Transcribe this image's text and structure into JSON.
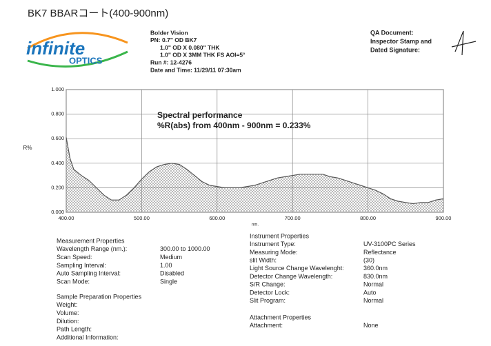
{
  "page_title": "BK7 BBARコート(400-900nm)",
  "logo": {
    "name": "infinite",
    "sub": "OPTICS"
  },
  "header": {
    "lines": [
      "Bolder Vision",
      "PN: 0.7\" OD BK7",
      "1.0\" OD X 0.080\" THK",
      "1.0\" OD X 3MM THK FS   AOI=5°",
      "Run #: 12-4276",
      "Date and Time: 11/29/11 07:30am"
    ]
  },
  "qa": {
    "lines": [
      "QA Document:",
      "Inspector Stamp and",
      "Dated Signature:"
    ]
  },
  "chart_data": {
    "type": "area",
    "annotations": [
      "Spectral performance",
      "%R(abs) from 400nm - 900nm = 0.233%"
    ],
    "x_label": "nm.",
    "y_label": "R%",
    "x": [
      400,
      405,
      410,
      420,
      430,
      440,
      450,
      460,
      470,
      480,
      490,
      500,
      510,
      520,
      530,
      540,
      550,
      560,
      570,
      580,
      590,
      600,
      610,
      620,
      630,
      640,
      650,
      660,
      670,
      680,
      690,
      700,
      710,
      720,
      730,
      740,
      750,
      760,
      770,
      780,
      790,
      800,
      810,
      820,
      830,
      840,
      850,
      860,
      870,
      880,
      890,
      900
    ],
    "values": [
      0.61,
      0.44,
      0.35,
      0.3,
      0.26,
      0.2,
      0.14,
      0.1,
      0.1,
      0.14,
      0.2,
      0.27,
      0.33,
      0.37,
      0.39,
      0.4,
      0.39,
      0.35,
      0.3,
      0.25,
      0.22,
      0.21,
      0.2,
      0.2,
      0.2,
      0.21,
      0.22,
      0.24,
      0.26,
      0.28,
      0.29,
      0.3,
      0.31,
      0.31,
      0.31,
      0.31,
      0.29,
      0.28,
      0.26,
      0.24,
      0.22,
      0.2,
      0.18,
      0.15,
      0.11,
      0.09,
      0.08,
      0.07,
      0.08,
      0.08,
      0.1,
      0.11
    ],
    "color": "#555555",
    "xlim": [
      400,
      900
    ],
    "xticks": [
      {
        "value": 400,
        "label": "400.00"
      },
      {
        "value": 500,
        "label": "500.00"
      },
      {
        "value": 600,
        "label": "600.00"
      },
      {
        "value": 700,
        "label": "700.00"
      },
      {
        "value": 800,
        "label": "800.00"
      },
      {
        "value": 900,
        "label": "900.00"
      }
    ],
    "ylim": [
      0,
      1
    ],
    "yticks": [
      {
        "value": 0,
        "label": "0.000"
      },
      {
        "value": 0.2,
        "label": "0.200"
      },
      {
        "value": 0.4,
        "label": "0.400"
      },
      {
        "value": 0.6,
        "label": "0.600"
      },
      {
        "value": 0.8,
        "label": "0.800"
      },
      {
        "value": 1,
        "label": "1.000"
      }
    ],
    "grid": true
  },
  "measurement": {
    "title": "Measurement Properties",
    "rows": [
      [
        "Wavelength Range (nm.):",
        "300.00 to 1000.00"
      ],
      [
        "Scan Speed:",
        "Medium"
      ],
      [
        "Sampling Interval:",
        "1.00"
      ],
      [
        "Auto Sampling Interval:",
        "Disabled"
      ],
      [
        "Scan Mode:",
        "Single"
      ]
    ]
  },
  "sample": {
    "title": "Sample Preparation Properties",
    "rows": [
      "Weight:",
      "Volume:",
      "Dilution:",
      "Path Length:",
      "Additional Information:"
    ]
  },
  "instrument": {
    "title": "Instrument Properties",
    "rows": [
      [
        "Instrument Type:",
        "UV-3100PC Series"
      ],
      [
        "Measuring Mode:",
        "Reflectance"
      ],
      [
        "slit Width:",
        "(30)"
      ],
      [
        "Light Source Change Wavelenght:",
        "360.0nm"
      ],
      [
        "Detector Change Wavelength:",
        "830.0nm"
      ],
      [
        "S/R Change:",
        "Normal"
      ],
      [
        "Detector Lock:",
        "Auto"
      ],
      [
        "Slit Program:",
        "Normal"
      ]
    ]
  },
  "attachment": {
    "title": "Attachment Properties",
    "rows": [
      [
        "Attachment:",
        "None"
      ]
    ]
  }
}
